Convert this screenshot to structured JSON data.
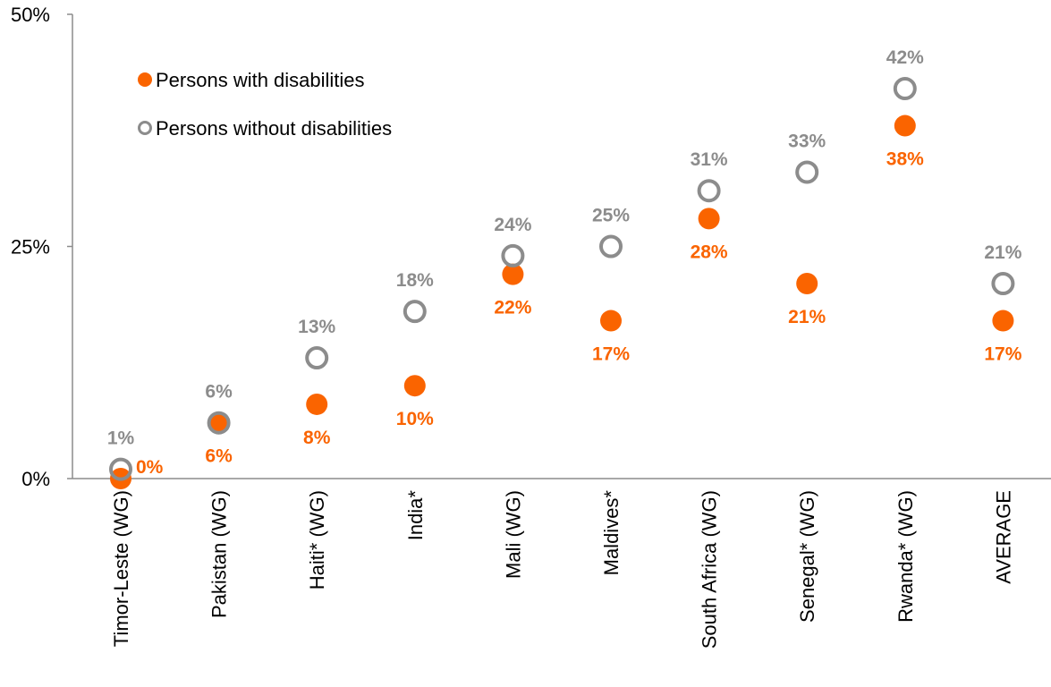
{
  "chart_data": {
    "type": "scatter",
    "title": "",
    "xlabel": "",
    "ylabel": "",
    "ylim": [
      0,
      50
    ],
    "yticks": [
      0,
      25,
      50
    ],
    "ytick_labels": [
      "0%",
      "25%",
      "50%"
    ],
    "grid": false,
    "legend_position": "top-left",
    "categories": [
      "Timor-Leste (WG)",
      "Pakistan (WG)",
      "Haiti* (WG)",
      "India*",
      "Mali (WG)",
      "Maldives*",
      "South Africa (WG)",
      "Senegal* (WG)",
      "Rwanda* (WG)",
      "AVERAGE"
    ],
    "series": [
      {
        "name": "Persons with disabilities",
        "marker": "filled-circle",
        "color": "#FA6400",
        "values": [
          0,
          6,
          8,
          10,
          22,
          17,
          28,
          21,
          38,
          17
        ],
        "labels": [
          "0%",
          "6%",
          "8%",
          "10%",
          "22%",
          "17%",
          "28%",
          "21%",
          "38%",
          "17%"
        ]
      },
      {
        "name": "Persons without disabilities",
        "marker": "hollow-circle",
        "color": "#8C8C8C",
        "values": [
          1,
          6,
          13,
          18,
          24,
          25,
          31,
          33,
          42,
          21
        ],
        "labels": [
          "1%",
          "6%",
          "13%",
          "18%",
          "24%",
          "25%",
          "31%",
          "33%",
          "42%",
          "21%"
        ]
      }
    ]
  }
}
